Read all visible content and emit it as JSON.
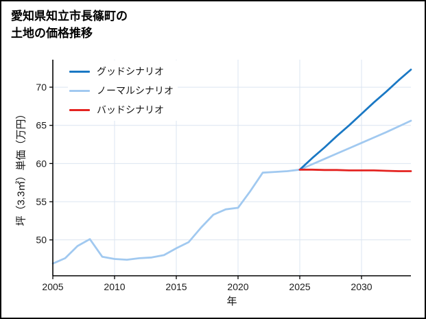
{
  "title": {
    "line1": "愛知県知立市長篠町の",
    "line2": "土地の価格推移"
  },
  "chart_data": {
    "type": "line",
    "title": "愛知県知立市長篠町の土地の価格推移",
    "xlabel": "年",
    "ylabel": "坪（3.3㎡）単価（万円）",
    "xlim": [
      2005,
      2034
    ],
    "ylim": [
      45.3,
      73.6
    ],
    "xticks": [
      2005,
      2010,
      2015,
      2020,
      2025,
      2030
    ],
    "yticks": [
      50,
      55,
      60,
      65,
      70
    ],
    "grid": true,
    "grid_color": "#dbe4f0",
    "axis_color": "#000000",
    "legend_position": "upper-left",
    "series": [
      {
        "name": "グッドシナリオ",
        "color": "#1a78c4",
        "x": [
          2025,
          2026,
          2027,
          2028,
          2029,
          2030,
          2031,
          2032,
          2033,
          2034
        ],
        "y": [
          59.2,
          60.7,
          62.1,
          63.6,
          65.0,
          66.5,
          68.0,
          69.4,
          70.9,
          72.3
        ]
      },
      {
        "name": "ノーマルシナリオ",
        "color": "#a1c9f0",
        "x": [
          2005,
          2006,
          2007,
          2008,
          2009,
          2010,
          2011,
          2012,
          2013,
          2014,
          2015,
          2016,
          2017,
          2018,
          2019,
          2020,
          2021,
          2022,
          2023,
          2024,
          2025,
          2026,
          2027,
          2028,
          2029,
          2030,
          2031,
          2032,
          2033,
          2034
        ],
        "y": [
          46.9,
          47.6,
          49.2,
          50.1,
          47.8,
          47.5,
          47.4,
          47.6,
          47.7,
          48.0,
          48.9,
          49.7,
          51.6,
          53.3,
          54.0,
          54.2,
          56.4,
          58.8,
          58.9,
          59.0,
          59.2,
          59.9,
          60.6,
          61.3,
          62.0,
          62.7,
          63.4,
          64.1,
          64.85,
          65.6
        ]
      },
      {
        "name": "バッドシナリオ",
        "color": "#e42320",
        "x": [
          2025,
          2026,
          2027,
          2028,
          2029,
          2030,
          2031,
          2032,
          2033,
          2034
        ],
        "y": [
          59.2,
          59.2,
          59.15,
          59.15,
          59.1,
          59.1,
          59.1,
          59.05,
          59.0,
          59.0
        ]
      }
    ]
  }
}
